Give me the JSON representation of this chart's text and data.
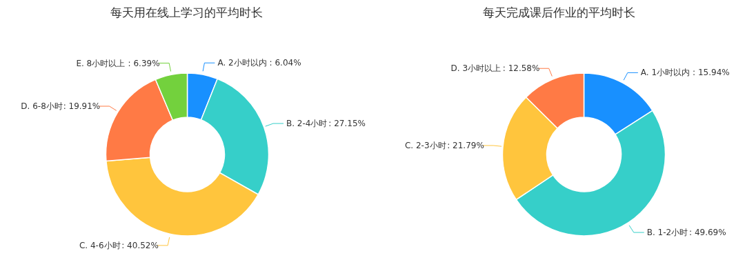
{
  "chart_data": [
    {
      "type": "donut",
      "title": "每天用在线上学习的平均时长",
      "categories": [
        "A. 2小时以内",
        "B. 2-4小时",
        "C. 4-6小时",
        "D. 6-8小时",
        "E. 8小时以上"
      ],
      "values": [
        6.04,
        27.15,
        40.52,
        19.91,
        6.39
      ],
      "colors": [
        "#1890ff",
        "#36cfc9",
        "#ffc53d",
        "#ff7a45",
        "#73d13d"
      ],
      "value_labels": [
        ": 6.04%",
        ": 27.15%",
        ": 40.52%",
        ": 19.91%",
        ": 6.39%"
      ],
      "legend": false
    },
    {
      "type": "donut",
      "title": "每天完成课后作业的平均时长",
      "categories": [
        "A. 1小时以内",
        "B. 1-2小时",
        "C. 2-3小时",
        "D. 3小时以上"
      ],
      "values": [
        15.94,
        49.69,
        21.79,
        12.58
      ],
      "colors": [
        "#1890ff",
        "#36cfc9",
        "#ffc53d",
        "#ff7a45"
      ],
      "value_labels": [
        ": 15.94%",
        ": 49.69%",
        ": 21.79%",
        ": 12.58%"
      ],
      "legend": false
    }
  ]
}
